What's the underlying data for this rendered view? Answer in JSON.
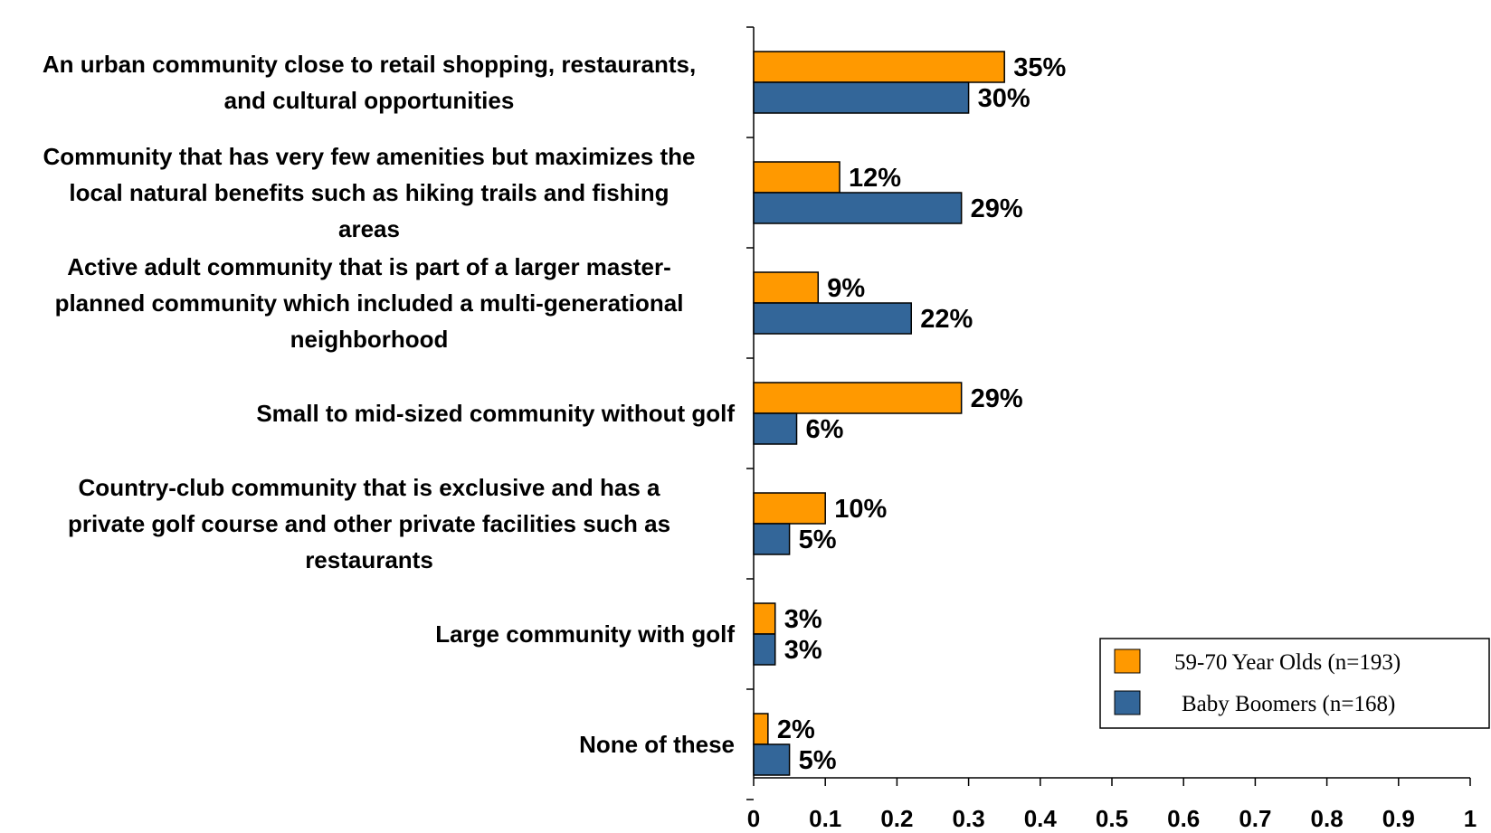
{
  "chart_data": {
    "type": "bar",
    "orientation": "horizontal",
    "title": "",
    "xlabel": "",
    "ylabel": "",
    "xlim": [
      0,
      1
    ],
    "x_ticks": [
      "0",
      "0.1",
      "0.2",
      "0.3",
      "0.4",
      "0.5",
      "0.6",
      "0.7",
      "0.8",
      "0.9",
      "1"
    ],
    "x_tick_values": [
      0,
      0.1,
      0.2,
      0.3,
      0.4,
      0.5,
      0.6,
      0.7,
      0.8,
      0.9,
      1
    ],
    "grid": false,
    "legend_position": "bottom-right",
    "categories": [
      [
        "An urban community close to retail shopping, restaurants,",
        "and cultural opportunities"
      ],
      [
        "Community that has very few amenities but maximizes the",
        "local natural benefits such as hiking trails and fishing",
        "areas"
      ],
      [
        "Active adult community that is part of a larger master-",
        "planned community which included a multi-generational",
        "neighborhood"
      ],
      [
        "Small to mid-sized community without golf"
      ],
      [
        "Country-club community that is exclusive and has a",
        "private golf course and other private facilities such as",
        "restaurants"
      ],
      [
        "Large community with golf"
      ],
      [
        "None of these"
      ]
    ],
    "series": [
      {
        "name": "59-70 Year Olds (n=193)",
        "color": "#FF9900",
        "values": [
          0.35,
          0.12,
          0.09,
          0.29,
          0.1,
          0.03,
          0.02
        ],
        "labels": [
          "35%",
          "12%",
          "9%",
          "29%",
          "10%",
          "3%",
          "2%"
        ]
      },
      {
        "name": "Baby Boomers (n=168)",
        "color": "#336699",
        "values": [
          0.3,
          0.29,
          0.22,
          0.06,
          0.05,
          0.03,
          0.05
        ],
        "labels": [
          "30%",
          "29%",
          "22%",
          "6%",
          "5%",
          "3%",
          "5%"
        ]
      }
    ]
  }
}
